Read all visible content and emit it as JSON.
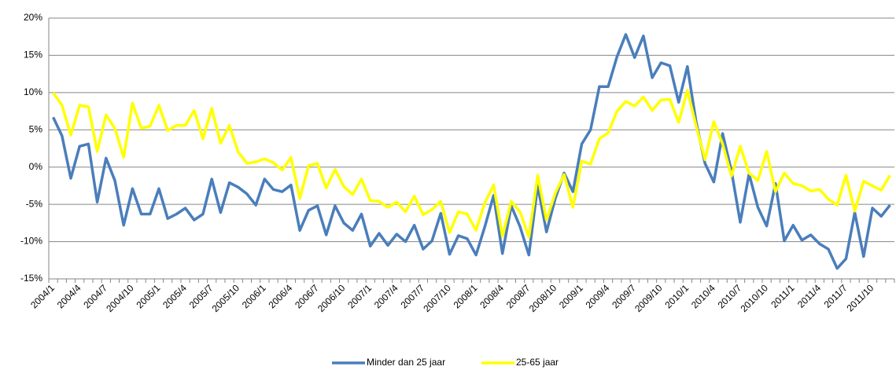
{
  "chart_data": {
    "type": "line",
    "categories": [
      "2004/1",
      null,
      null,
      "2004/4",
      null,
      null,
      "2004/7",
      null,
      null,
      "2004/10",
      null,
      null,
      "2005/1",
      null,
      null,
      "2005/4",
      null,
      null,
      "2005/7",
      null,
      null,
      "2005/10",
      null,
      null,
      "2006/1",
      null,
      null,
      "2006/4",
      null,
      null,
      "2006/7",
      null,
      null,
      "2006/10",
      null,
      null,
      "2007/1",
      null,
      null,
      "2007/4",
      null,
      null,
      "2007/7",
      null,
      null,
      "2007/10",
      null,
      null,
      "2008/1",
      null,
      null,
      "2008/4",
      null,
      null,
      "2008/7",
      null,
      null,
      "2008/10",
      null,
      null,
      "2009/1",
      null,
      null,
      "2009/4",
      null,
      null,
      "2009/7",
      null,
      null,
      "2009/10",
      null,
      null,
      "2010/1",
      null,
      null,
      "2010/4",
      null,
      null,
      "2010/7",
      null,
      null,
      "2010/10",
      null,
      null,
      "2011/1",
      null,
      null,
      "2011/4",
      null,
      null,
      "2011/7",
      null,
      null,
      "2011/10",
      null,
      null
    ],
    "series": [
      {
        "name": "Minder dan 25 jaar",
        "color": "#4a7ebb",
        "values": [
          6.7,
          4.2,
          -1.5,
          2.8,
          3.1,
          -4.7,
          1.2,
          -1.8,
          -7.8,
          -2.9,
          -6.3,
          -6.3,
          -2.9,
          -6.9,
          -6.3,
          -5.5,
          -7.1,
          -6.3,
          -1.6,
          -6.1,
          -2.1,
          -2.7,
          -3.6,
          -5.1,
          -1.6,
          -3.0,
          -3.3,
          -2.4,
          -8.5,
          -5.8,
          -5.2,
          -9.1,
          -5.2,
          -7.5,
          -8.5,
          -6.3,
          -10.6,
          -8.9,
          -10.5,
          -9.0,
          -10.0,
          -7.8,
          -11.0,
          -9.9,
          -6.2,
          -11.7,
          -9.2,
          -9.6,
          -11.8,
          -8.0,
          -3.8,
          -11.6,
          -5.2,
          -8.0,
          -11.8,
          -2.5,
          -8.7,
          -4.2,
          -0.8,
          -3.3,
          3.1,
          5.0,
          10.8,
          10.8,
          14.8,
          17.8,
          14.7,
          17.6,
          12.0,
          14.0,
          13.6,
          8.7,
          13.5,
          6.0,
          0.5,
          -2.0,
          4.5,
          -0.5,
          -7.4,
          -0.9,
          -5.4,
          -7.9,
          -2.2,
          -9.9,
          -7.8,
          -9.8,
          -9.1,
          -10.3,
          -11.0,
          -13.6,
          -12.3,
          -6.1,
          -12.0,
          -5.5,
          -6.6,
          -5.1
        ]
      },
      {
        "name": "25-65 jaar",
        "color": "#ffff00",
        "values": [
          10.0,
          8.3,
          4.3,
          8.3,
          8.1,
          2.1,
          7.0,
          5.2,
          1.3,
          8.6,
          5.2,
          5.5,
          8.3,
          4.9,
          5.6,
          5.6,
          7.6,
          3.8,
          7.9,
          3.2,
          5.6,
          2.0,
          0.5,
          0.7,
          1.1,
          0.6,
          -0.4,
          1.3,
          -4.2,
          0.2,
          0.5,
          -2.8,
          -0.3,
          -2.6,
          -3.7,
          -1.6,
          -4.5,
          -4.6,
          -5.4,
          -4.7,
          -6.0,
          -3.9,
          -6.4,
          -5.7,
          -4.6,
          -8.8,
          -6.0,
          -6.3,
          -8.5,
          -4.8,
          -2.4,
          -9.3,
          -4.6,
          -6.0,
          -9.4,
          -1.1,
          -7.1,
          -3.5,
          -1.0,
          -5.4,
          0.8,
          0.4,
          3.8,
          4.6,
          7.5,
          8.8,
          8.2,
          9.4,
          7.6,
          9.0,
          9.1,
          6.0,
          10.3,
          5.5,
          1.0,
          6.1,
          3.1,
          -1.2,
          2.8,
          -0.8,
          -1.8,
          2.1,
          -3.3,
          -0.8,
          -2.2,
          -2.5,
          -3.2,
          -3.0,
          -4.3,
          -5.1,
          -1.1,
          -5.9,
          -1.9,
          -2.5,
          -3.1,
          -1.1
        ]
      }
    ],
    "ylim": [
      -15,
      20
    ],
    "yticks": [
      {
        "value": -15,
        "label": "-15%"
      },
      {
        "value": -10,
        "label": "-10%"
      },
      {
        "value": -5,
        "label": "-5%"
      },
      {
        "value": 0,
        "label": "0%"
      },
      {
        "value": 5,
        "label": "5%"
      },
      {
        "value": 10,
        "label": "10%"
      },
      {
        "value": 15,
        "label": "15%"
      },
      {
        "value": 20,
        "label": "20%"
      }
    ],
    "grid": true,
    "legend": "bottom"
  }
}
